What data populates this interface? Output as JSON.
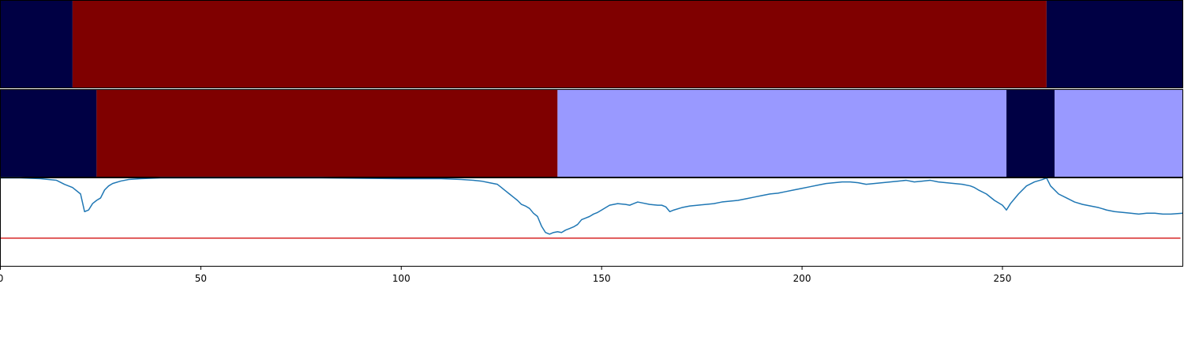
{
  "chart_data": [
    {
      "type": "heatmap",
      "panel": "segment-track-1",
      "xlim": [
        0,
        295
      ],
      "segments": [
        {
          "start": 0,
          "end": 18,
          "color": "#000044"
        },
        {
          "start": 18,
          "end": 261,
          "color": "#7f0000"
        },
        {
          "start": 261,
          "end": 295,
          "color": "#000044"
        }
      ]
    },
    {
      "type": "heatmap",
      "panel": "segment-track-2",
      "xlim": [
        0,
        295
      ],
      "segments": [
        {
          "start": 0,
          "end": 24,
          "color": "#000044"
        },
        {
          "start": 24,
          "end": 139,
          "color": "#7f0000"
        },
        {
          "start": 139,
          "end": 251,
          "color": "#9999ff"
        },
        {
          "start": 251,
          "end": 263,
          "color": "#000044"
        },
        {
          "start": 263,
          "end": 295,
          "color": "#9999ff"
        }
      ]
    },
    {
      "type": "line",
      "panel": "signal-track",
      "xlim": [
        0,
        295
      ],
      "ylim": [
        -0.1,
        1.0
      ],
      "xticks": [
        0,
        50,
        100,
        150,
        200,
        250
      ],
      "grid": false,
      "threshold": {
        "y": 0.25,
        "color": "#d62728"
      },
      "line_color": "#1f77b4",
      "series": [
        {
          "x": [
            0,
            5,
            10,
            14,
            16,
            18,
            20,
            21,
            22,
            23,
            24,
            25,
            26,
            27,
            28,
            30,
            32,
            35,
            40,
            60,
            80,
            100,
            110,
            115,
            118,
            120,
            122,
            124,
            125,
            126,
            127,
            128,
            129,
            130,
            131,
            132,
            133,
            134,
            135,
            136,
            137,
            138,
            139,
            140,
            141,
            142,
            143,
            144,
            145,
            146,
            147,
            148,
            149,
            150,
            152,
            154,
            156,
            157,
            158,
            159,
            160,
            162,
            164,
            165,
            166,
            167,
            168,
            170,
            172,
            174,
            176,
            178,
            180,
            182,
            184,
            186,
            188,
            190,
            192,
            194,
            196,
            198,
            200,
            202,
            204,
            206,
            208,
            210,
            212,
            214,
            215,
            216,
            218,
            220,
            222,
            224,
            226,
            228,
            230,
            232,
            234,
            236,
            238,
            240,
            242,
            243,
            244,
            246,
            248,
            250,
            251,
            252,
            254,
            256,
            258,
            260,
            261,
            262,
            264,
            266,
            268,
            270,
            272,
            274,
            276,
            278,
            280,
            282,
            284,
            286,
            288,
            290,
            292,
            295
          ],
          "y": [
            1.0,
            1.0,
            0.99,
            0.97,
            0.92,
            0.88,
            0.8,
            0.58,
            0.6,
            0.68,
            0.72,
            0.75,
            0.85,
            0.9,
            0.93,
            0.96,
            0.98,
            0.99,
            1.0,
            1.0,
            1.0,
            0.99,
            0.99,
            0.98,
            0.97,
            0.96,
            0.94,
            0.92,
            0.88,
            0.84,
            0.8,
            0.76,
            0.72,
            0.67,
            0.65,
            0.62,
            0.56,
            0.52,
            0.4,
            0.32,
            0.3,
            0.32,
            0.33,
            0.32,
            0.35,
            0.37,
            0.39,
            0.42,
            0.48,
            0.5,
            0.52,
            0.55,
            0.57,
            0.6,
            0.66,
            0.68,
            0.67,
            0.66,
            0.68,
            0.7,
            0.69,
            0.67,
            0.66,
            0.66,
            0.64,
            0.58,
            0.6,
            0.63,
            0.65,
            0.66,
            0.67,
            0.68,
            0.7,
            0.71,
            0.72,
            0.74,
            0.76,
            0.78,
            0.8,
            0.81,
            0.83,
            0.85,
            0.87,
            0.89,
            0.91,
            0.93,
            0.94,
            0.95,
            0.95,
            0.94,
            0.93,
            0.92,
            0.93,
            0.94,
            0.95,
            0.96,
            0.97,
            0.95,
            0.96,
            0.97,
            0.95,
            0.94,
            0.93,
            0.92,
            0.9,
            0.88,
            0.85,
            0.8,
            0.72,
            0.66,
            0.6,
            0.68,
            0.8,
            0.9,
            0.95,
            0.98,
            1.0,
            0.9,
            0.8,
            0.75,
            0.7,
            0.67,
            0.65,
            0.63,
            0.6,
            0.58,
            0.57,
            0.56,
            0.55,
            0.56,
            0.56,
            0.55,
            0.55,
            0.56
          ]
        }
      ]
    }
  ]
}
